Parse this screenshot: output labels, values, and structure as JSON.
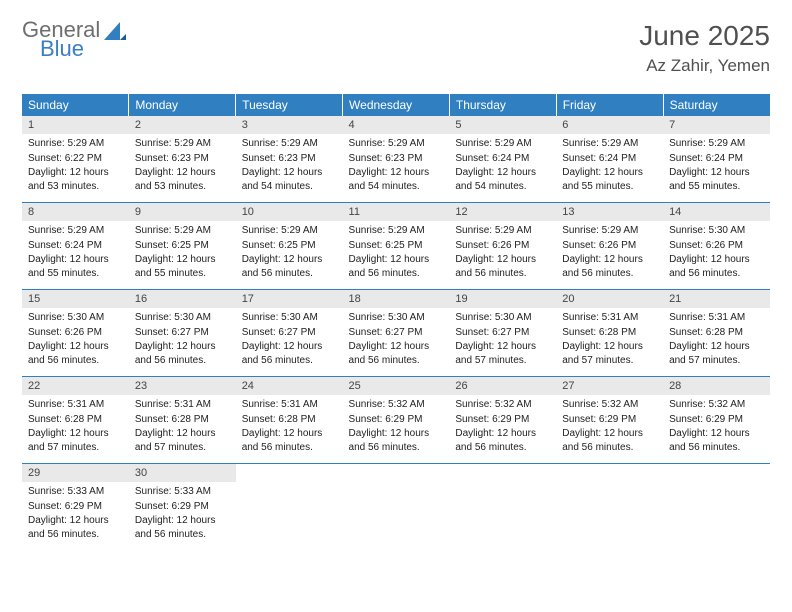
{
  "logo": {
    "general": "General",
    "blue": "Blue"
  },
  "title": "June 2025",
  "location": "Az Zahir, Yemen",
  "dayHeaders": [
    "Sunday",
    "Monday",
    "Tuesday",
    "Wednesday",
    "Thursday",
    "Friday",
    "Saturday"
  ],
  "colors": {
    "header_bg": "#2f7fc1",
    "header_text": "#ffffff",
    "daynum_bg": "#e9e9e9",
    "row_border": "#2f7fc1",
    "logo_gray": "#6e6e6e",
    "logo_blue": "#3a7fc4",
    "title_color": "#505050"
  },
  "fonts": {
    "day_header_pt": 12,
    "daynum_pt": 11,
    "cell_pt": 10,
    "title_pt": 28,
    "location_pt": 17
  },
  "weeks": [
    [
      {
        "n": "1",
        "sunrise": "5:29 AM",
        "sunset": "6:22 PM",
        "dl": "12 hours and 53 minutes."
      },
      {
        "n": "2",
        "sunrise": "5:29 AM",
        "sunset": "6:23 PM",
        "dl": "12 hours and 53 minutes."
      },
      {
        "n": "3",
        "sunrise": "5:29 AM",
        "sunset": "6:23 PM",
        "dl": "12 hours and 54 minutes."
      },
      {
        "n": "4",
        "sunrise": "5:29 AM",
        "sunset": "6:23 PM",
        "dl": "12 hours and 54 minutes."
      },
      {
        "n": "5",
        "sunrise": "5:29 AM",
        "sunset": "6:24 PM",
        "dl": "12 hours and 54 minutes."
      },
      {
        "n": "6",
        "sunrise": "5:29 AM",
        "sunset": "6:24 PM",
        "dl": "12 hours and 55 minutes."
      },
      {
        "n": "7",
        "sunrise": "5:29 AM",
        "sunset": "6:24 PM",
        "dl": "12 hours and 55 minutes."
      }
    ],
    [
      {
        "n": "8",
        "sunrise": "5:29 AM",
        "sunset": "6:24 PM",
        "dl": "12 hours and 55 minutes."
      },
      {
        "n": "9",
        "sunrise": "5:29 AM",
        "sunset": "6:25 PM",
        "dl": "12 hours and 55 minutes."
      },
      {
        "n": "10",
        "sunrise": "5:29 AM",
        "sunset": "6:25 PM",
        "dl": "12 hours and 56 minutes."
      },
      {
        "n": "11",
        "sunrise": "5:29 AM",
        "sunset": "6:25 PM",
        "dl": "12 hours and 56 minutes."
      },
      {
        "n": "12",
        "sunrise": "5:29 AM",
        "sunset": "6:26 PM",
        "dl": "12 hours and 56 minutes."
      },
      {
        "n": "13",
        "sunrise": "5:29 AM",
        "sunset": "6:26 PM",
        "dl": "12 hours and 56 minutes."
      },
      {
        "n": "14",
        "sunrise": "5:30 AM",
        "sunset": "6:26 PM",
        "dl": "12 hours and 56 minutes."
      }
    ],
    [
      {
        "n": "15",
        "sunrise": "5:30 AM",
        "sunset": "6:26 PM",
        "dl": "12 hours and 56 minutes."
      },
      {
        "n": "16",
        "sunrise": "5:30 AM",
        "sunset": "6:27 PM",
        "dl": "12 hours and 56 minutes."
      },
      {
        "n": "17",
        "sunrise": "5:30 AM",
        "sunset": "6:27 PM",
        "dl": "12 hours and 56 minutes."
      },
      {
        "n": "18",
        "sunrise": "5:30 AM",
        "sunset": "6:27 PM",
        "dl": "12 hours and 56 minutes."
      },
      {
        "n": "19",
        "sunrise": "5:30 AM",
        "sunset": "6:27 PM",
        "dl": "12 hours and 57 minutes."
      },
      {
        "n": "20",
        "sunrise": "5:31 AM",
        "sunset": "6:28 PM",
        "dl": "12 hours and 57 minutes."
      },
      {
        "n": "21",
        "sunrise": "5:31 AM",
        "sunset": "6:28 PM",
        "dl": "12 hours and 57 minutes."
      }
    ],
    [
      {
        "n": "22",
        "sunrise": "5:31 AM",
        "sunset": "6:28 PM",
        "dl": "12 hours and 57 minutes."
      },
      {
        "n": "23",
        "sunrise": "5:31 AM",
        "sunset": "6:28 PM",
        "dl": "12 hours and 57 minutes."
      },
      {
        "n": "24",
        "sunrise": "5:31 AM",
        "sunset": "6:28 PM",
        "dl": "12 hours and 56 minutes."
      },
      {
        "n": "25",
        "sunrise": "5:32 AM",
        "sunset": "6:29 PM",
        "dl": "12 hours and 56 minutes."
      },
      {
        "n": "26",
        "sunrise": "5:32 AM",
        "sunset": "6:29 PM",
        "dl": "12 hours and 56 minutes."
      },
      {
        "n": "27",
        "sunrise": "5:32 AM",
        "sunset": "6:29 PM",
        "dl": "12 hours and 56 minutes."
      },
      {
        "n": "28",
        "sunrise": "5:32 AM",
        "sunset": "6:29 PM",
        "dl": "12 hours and 56 minutes."
      }
    ],
    [
      {
        "n": "29",
        "sunrise": "5:33 AM",
        "sunset": "6:29 PM",
        "dl": "12 hours and 56 minutes."
      },
      {
        "n": "30",
        "sunrise": "5:33 AM",
        "sunset": "6:29 PM",
        "dl": "12 hours and 56 minutes."
      },
      null,
      null,
      null,
      null,
      null
    ]
  ],
  "labels": {
    "sunrise_prefix": "Sunrise: ",
    "sunset_prefix": "Sunset: ",
    "daylight_prefix": "Daylight: "
  }
}
